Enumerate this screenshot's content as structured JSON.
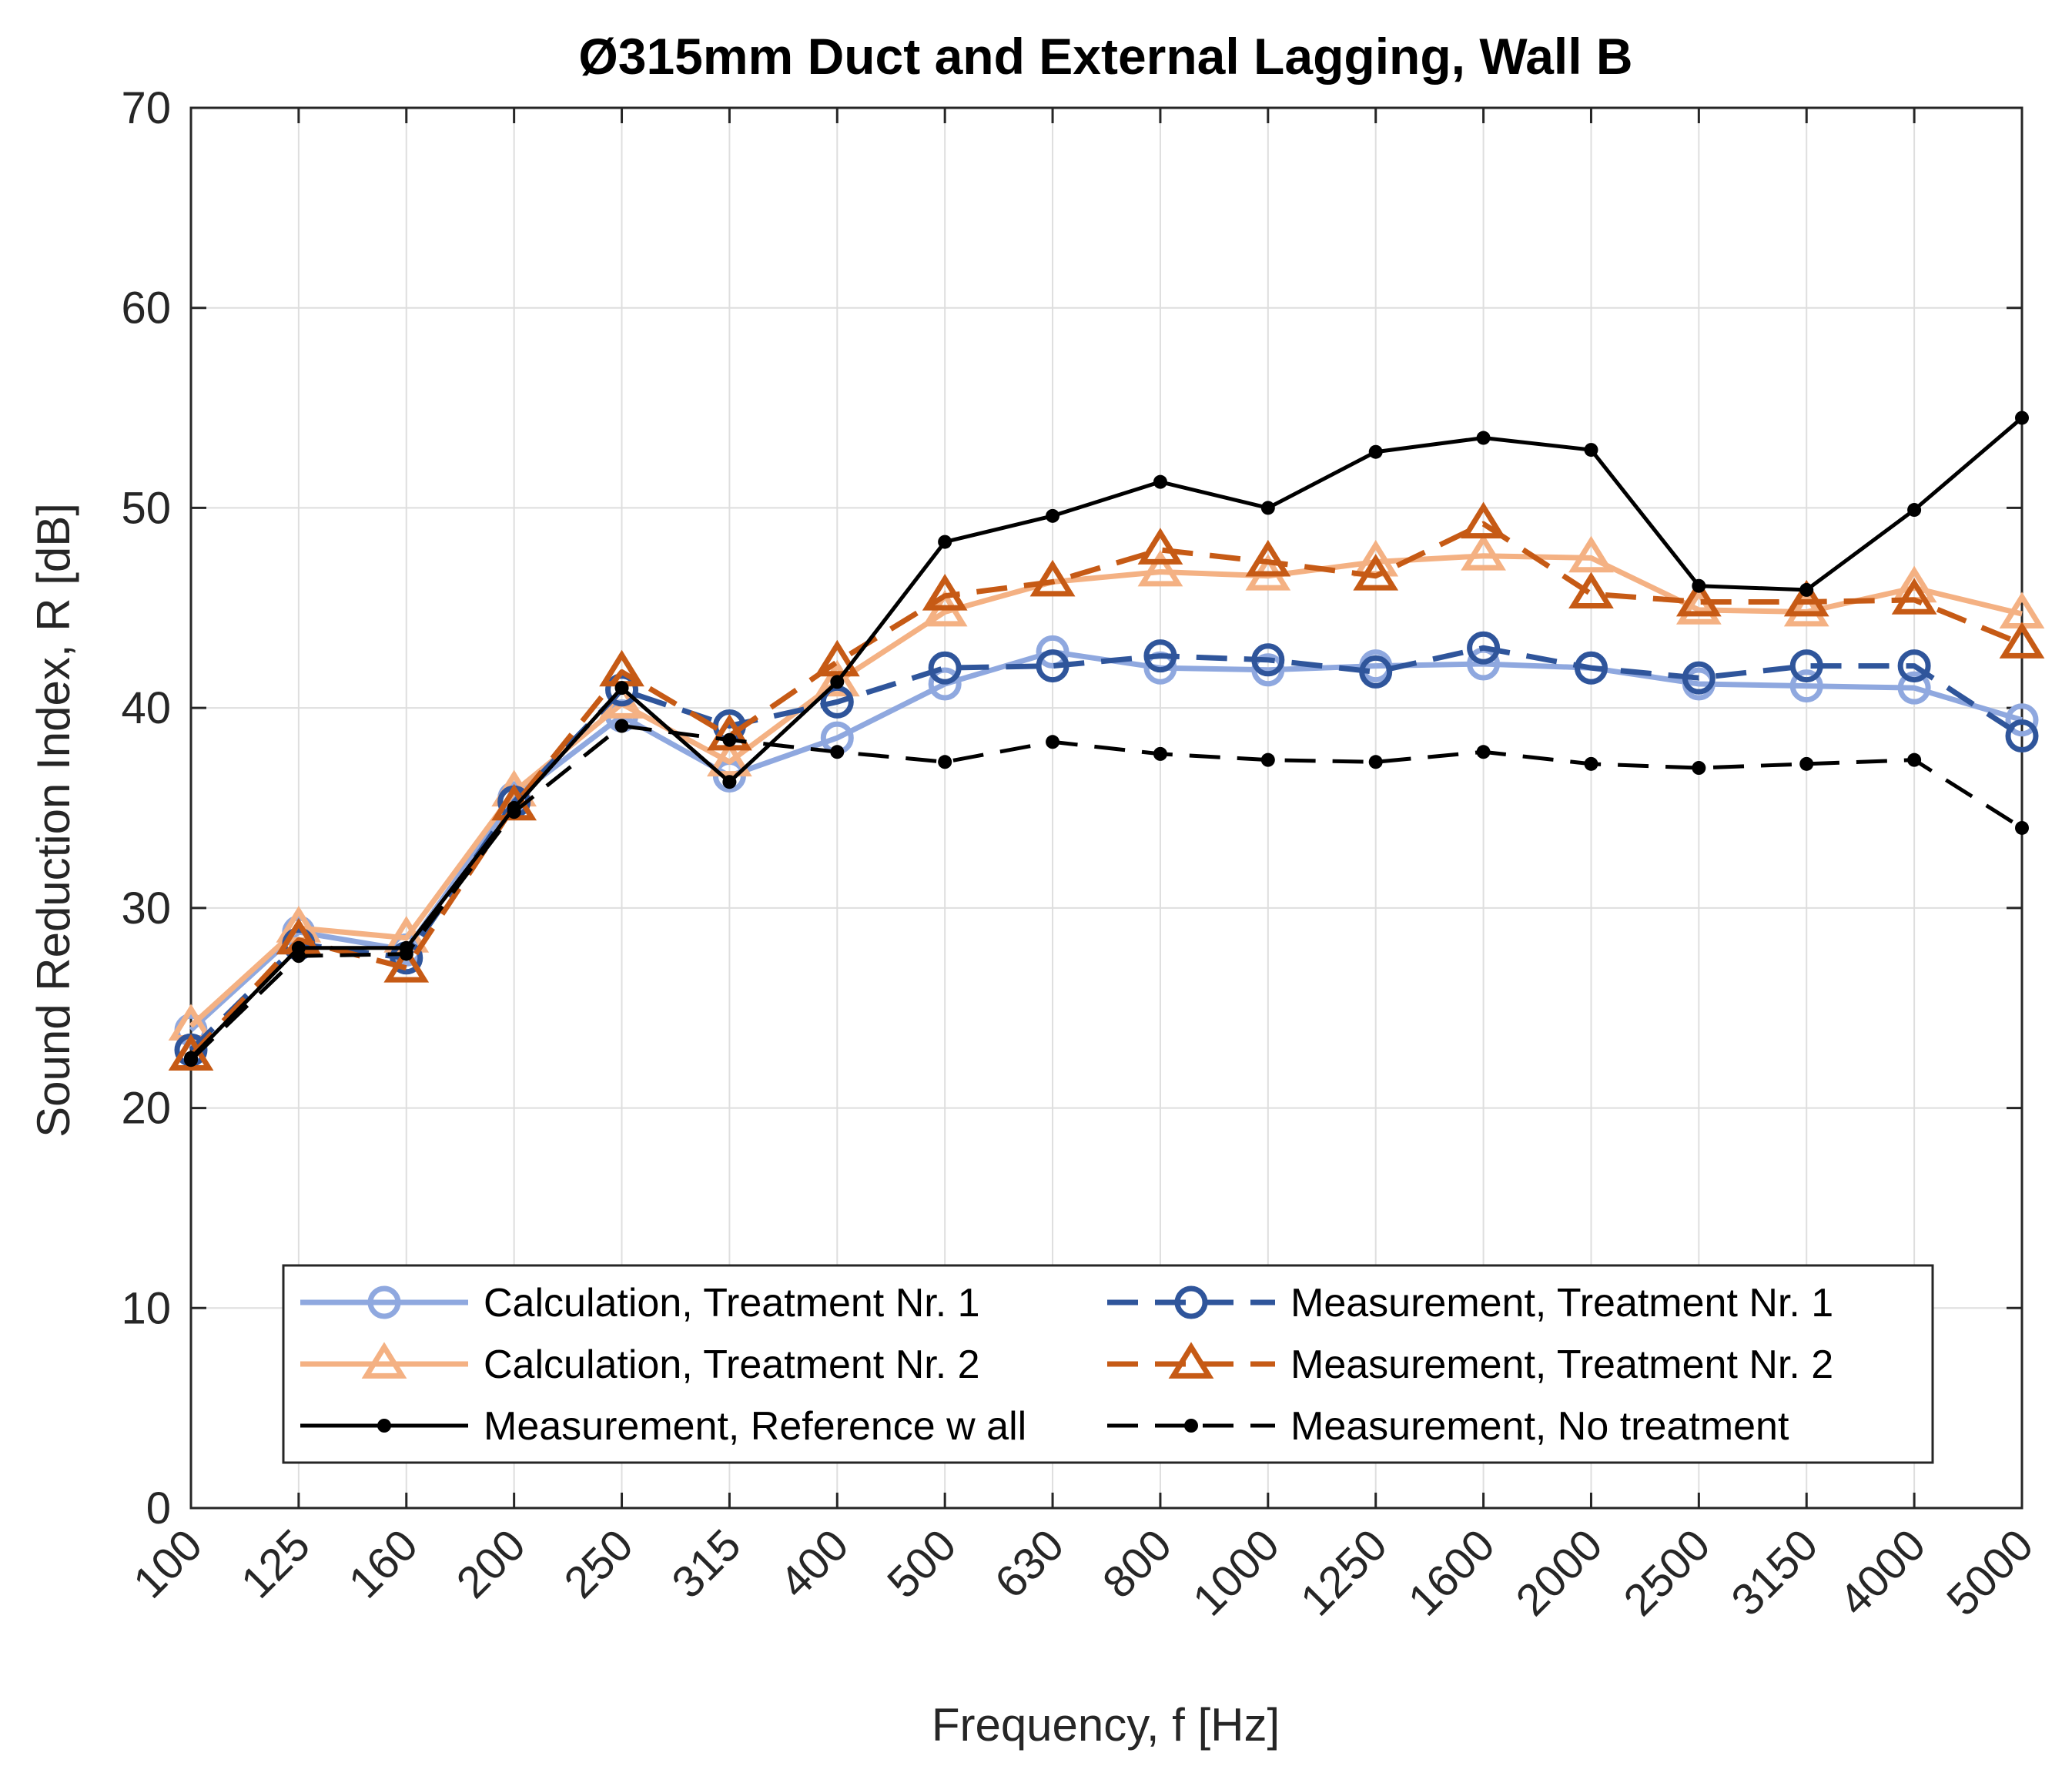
{
  "chart_data": {
    "type": "line",
    "title": "Ø315mm Duct and External Lagging, Wall B",
    "xlabel": "Frequency, f [Hz]",
    "ylabel": "Sound Reduction Index, R [dB]",
    "ylim": [
      0,
      70
    ],
    "yticks": [
      "0",
      "10",
      "20",
      "30",
      "40",
      "50",
      "60",
      "70"
    ],
    "grid": true,
    "legend_position": "bottom-center",
    "categories": [
      "100",
      "125",
      "160",
      "200",
      "250",
      "315",
      "400",
      "500",
      "630",
      "800",
      "1000",
      "1250",
      "1600",
      "2000",
      "2500",
      "3150",
      "4000",
      "5000"
    ],
    "series": [
      {
        "name": "Calculation, Treatment Nr. 1",
        "color": "#8fa8df",
        "dash": "solid",
        "marker": "circle",
        "values": [
          23.9,
          28.8,
          27.9,
          35.5,
          39.6,
          36.6,
          38.5,
          41.2,
          42.8,
          42.0,
          41.9,
          42.1,
          42.2,
          42.0,
          41.2,
          41.1,
          41.0,
          39.4
        ]
      },
      {
        "name": "Measurement, Treatment Nr. 1",
        "color": "#2f559b",
        "dash": "dashed",
        "marker": "circle",
        "values": [
          22.9,
          28.2,
          27.5,
          35.3,
          40.9,
          39.1,
          40.3,
          42.0,
          42.1,
          42.6,
          42.4,
          41.8,
          43.0,
          42.0,
          41.5,
          42.1,
          42.1,
          38.6
        ]
      },
      {
        "name": "Calculation, Treatment Nr. 2",
        "color": "#f4b183",
        "dash": "solid",
        "marker": "triangle",
        "values": [
          24.1,
          29.0,
          28.5,
          35.8,
          40.2,
          37.3,
          41.3,
          44.8,
          46.3,
          46.8,
          46.6,
          47.3,
          47.6,
          47.5,
          44.9,
          44.8,
          46.0,
          44.7
        ]
      },
      {
        "name": "Measurement, Treatment Nr. 2",
        "color": "#c65a15",
        "dash": "dashed",
        "marker": "triangle",
        "values": [
          22.6,
          28.4,
          27.0,
          35.1,
          41.8,
          38.6,
          42.3,
          45.6,
          46.3,
          47.9,
          47.3,
          46.6,
          49.2,
          45.7,
          45.3,
          45.3,
          45.4,
          43.2
        ]
      },
      {
        "name": "Measurement, Reference w all",
        "color": "#000000",
        "dash": "solid",
        "marker": "dot",
        "values": [
          22.5,
          28.0,
          28.0,
          35.0,
          41.0,
          36.3,
          41.3,
          48.3,
          49.6,
          51.3,
          50.0,
          52.8,
          53.5,
          52.9,
          46.1,
          45.9,
          49.9,
          54.5
        ]
      },
      {
        "name": "Measurement, No treatment",
        "color": "#000000",
        "dash": "dashed",
        "marker": "dot",
        "values": [
          22.4,
          27.6,
          27.7,
          34.8,
          39.1,
          38.4,
          37.8,
          37.3,
          38.3,
          37.7,
          37.4,
          37.3,
          37.8,
          37.2,
          37.0,
          37.2,
          37.4,
          34.0
        ]
      }
    ],
    "legend_order": [
      0,
      1,
      2,
      3,
      4,
      5
    ]
  }
}
